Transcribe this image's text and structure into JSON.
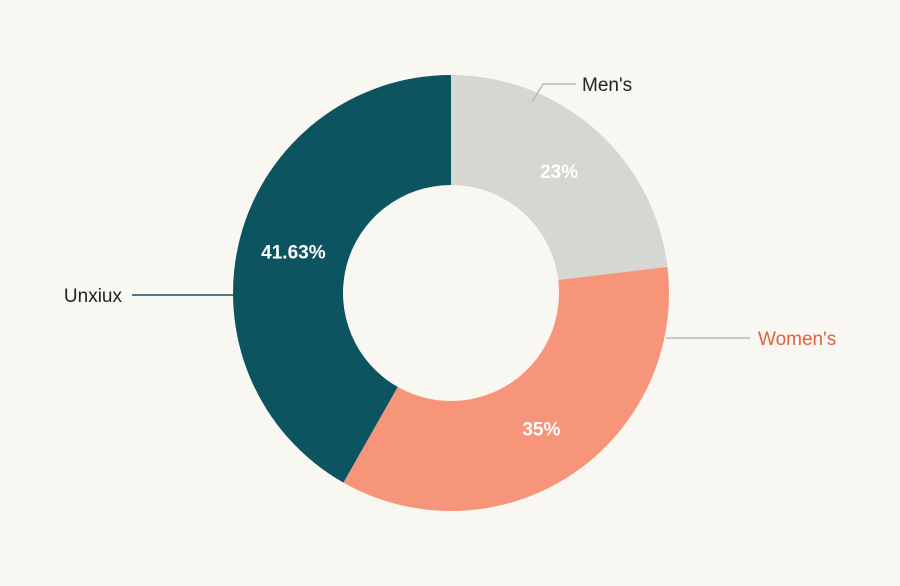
{
  "chart_data": {
    "type": "pie",
    "donut": true,
    "categories": [
      "Men's",
      "Women's",
      "Unxiux"
    ],
    "values": [
      23,
      35,
      41.63
    ],
    "value_labels": [
      "23%",
      "35%",
      "41.63%"
    ],
    "colors": [
      "#d6d6d2",
      "#f7957a",
      "#0c5460"
    ],
    "label_colors": [
      "#222222",
      "#e4603f",
      "#222222"
    ],
    "leader_color": "#b9b9b4",
    "legend": "callout-labels"
  }
}
